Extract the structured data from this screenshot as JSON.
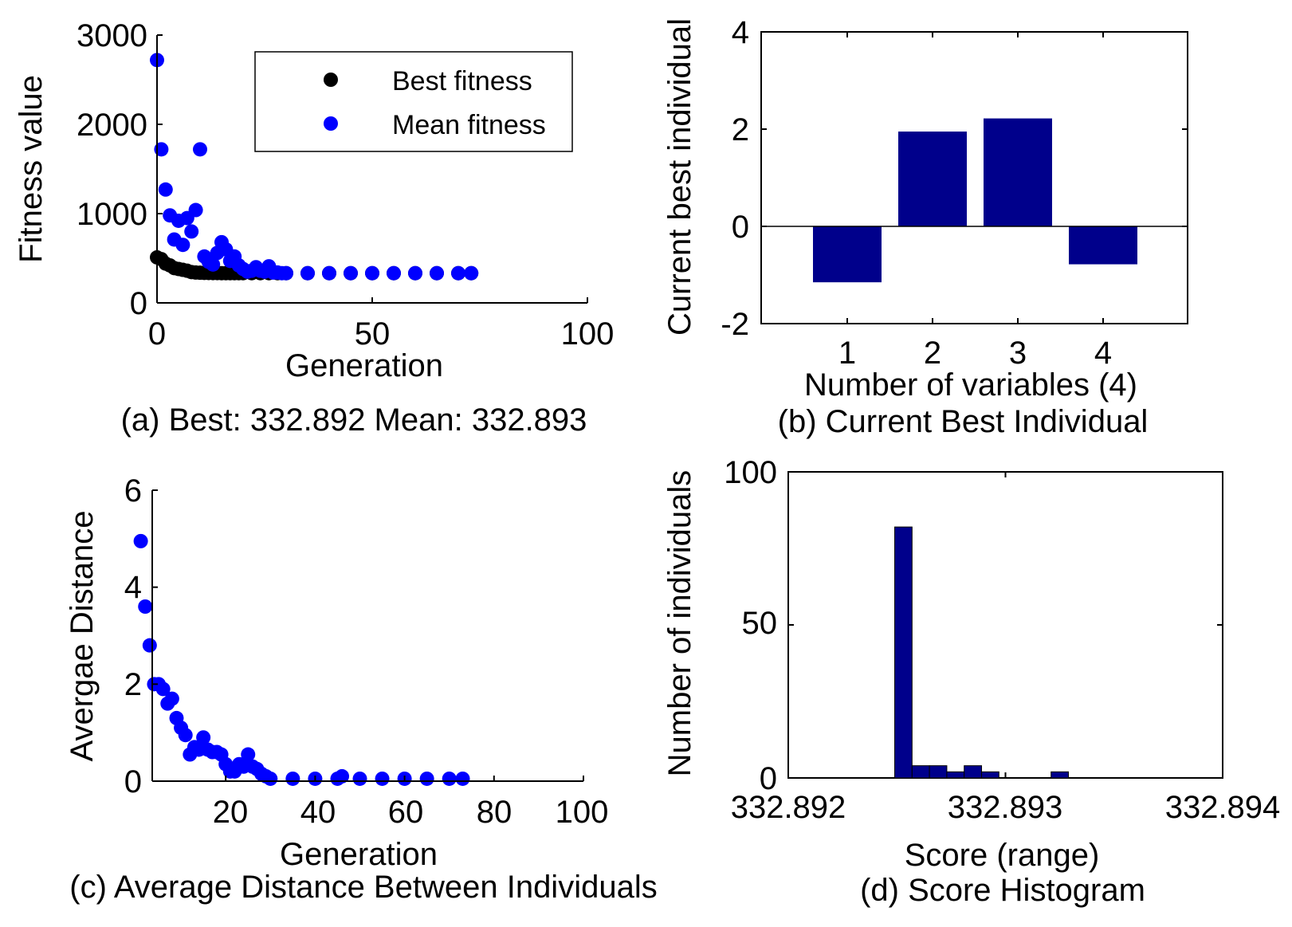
{
  "colors": {
    "best": "#000000",
    "mean": "#0000ff",
    "bar": "#00008b",
    "axis": "#000000"
  },
  "chart_data": [
    {
      "type": "scatter",
      "caption": "(a) Best: 332.892 Mean: 332.893",
      "xlabel": "Generation",
      "ylabel": "Fitness value",
      "xlim": [
        0,
        100
      ],
      "ylim": [
        0,
        3000
      ],
      "xticks": [
        "0",
        "50",
        "100"
      ],
      "yticks": [
        "0",
        "1000",
        "2000",
        "3000"
      ],
      "legend_position": "top-right",
      "series": [
        {
          "name": "Best fitness",
          "color": "#000000",
          "points": [
            [
              0,
              510
            ],
            [
              1,
              490
            ],
            [
              2,
              440
            ],
            [
              3,
              420
            ],
            [
              4,
              390
            ],
            [
              5,
              380
            ],
            [
              6,
              370
            ],
            [
              7,
              360
            ],
            [
              8,
              345
            ],
            [
              9,
              340
            ],
            [
              10,
              338
            ],
            [
              11,
              336
            ],
            [
              12,
              335
            ],
            [
              13,
              334
            ],
            [
              14,
              334
            ],
            [
              15,
              333
            ],
            [
              16,
              333
            ],
            [
              17,
              333
            ],
            [
              18,
              333
            ],
            [
              19,
              333
            ],
            [
              20,
              333
            ],
            [
              22,
              333
            ],
            [
              24,
              333
            ],
            [
              26,
              333
            ],
            [
              28,
              333
            ],
            [
              30,
              333
            ],
            [
              35,
              333
            ],
            [
              40,
              333
            ],
            [
              45,
              333
            ],
            [
              50,
              333
            ],
            [
              55,
              333
            ],
            [
              60,
              333
            ],
            [
              65,
              333
            ],
            [
              70,
              333
            ],
            [
              73,
              333
            ]
          ]
        },
        {
          "name": "Mean fitness",
          "color": "#0000ff",
          "points": [
            [
              0,
              2720
            ],
            [
              1,
              1720
            ],
            [
              2,
              1270
            ],
            [
              3,
              980
            ],
            [
              4,
              710
            ],
            [
              5,
              920
            ],
            [
              6,
              650
            ],
            [
              7,
              950
            ],
            [
              8,
              800
            ],
            [
              9,
              1040
            ],
            [
              10,
              1720
            ],
            [
              11,
              520
            ],
            [
              12,
              460
            ],
            [
              13,
              430
            ],
            [
              14,
              560
            ],
            [
              15,
              680
            ],
            [
              16,
              600
            ],
            [
              17,
              470
            ],
            [
              18,
              520
            ],
            [
              19,
              420
            ],
            [
              20,
              380
            ],
            [
              21,
              350
            ],
            [
              22,
              360
            ],
            [
              23,
              400
            ],
            [
              24,
              360
            ],
            [
              25,
              350
            ],
            [
              26,
              410
            ],
            [
              27,
              340
            ],
            [
              28,
              340
            ],
            [
              29,
              333
            ],
            [
              30,
              333
            ],
            [
              35,
              333
            ],
            [
              40,
              333
            ],
            [
              45,
              333
            ],
            [
              50,
              333
            ],
            [
              55,
              333
            ],
            [
              60,
              333
            ],
            [
              65,
              333
            ],
            [
              70,
              333
            ],
            [
              73,
              333
            ]
          ]
        }
      ]
    },
    {
      "type": "bar",
      "caption": "(b) Current Best Individual",
      "xlabel": "Number of variables (4)",
      "ylabel": "Current best individual",
      "categories": [
        "1",
        "2",
        "3",
        "4"
      ],
      "values": [
        -1.15,
        1.95,
        2.22,
        -0.78
      ],
      "ylim": [
        -2,
        4
      ],
      "yticks": [
        "-2",
        "0",
        "2",
        "4"
      ]
    },
    {
      "type": "scatter",
      "caption": "(c) Average Distance Between Individuals",
      "xlabel": "Generation",
      "ylabel": "Avergae Distance",
      "xlim": [
        0,
        100
      ],
      "ylim": [
        0,
        6
      ],
      "xticks": [
        "20",
        "40",
        "60",
        "80",
        "100"
      ],
      "yticks": [
        "0",
        "2",
        "4",
        "6"
      ],
      "series": [
        {
          "color": "#0000ff",
          "points": [
            [
              1,
              4.95
            ],
            [
              2,
              3.6
            ],
            [
              3,
              2.8
            ],
            [
              4,
              2.0
            ],
            [
              5,
              2.0
            ],
            [
              6,
              1.9
            ],
            [
              7,
              1.6
            ],
            [
              8,
              1.7
            ],
            [
              9,
              1.3
            ],
            [
              10,
              1.1
            ],
            [
              11,
              0.95
            ],
            [
              12,
              0.55
            ],
            [
              13,
              0.7
            ],
            [
              14,
              0.65
            ],
            [
              15,
              0.9
            ],
            [
              16,
              0.65
            ],
            [
              17,
              0.6
            ],
            [
              18,
              0.6
            ],
            [
              19,
              0.55
            ],
            [
              20,
              0.35
            ],
            [
              21,
              0.2
            ],
            [
              22,
              0.2
            ],
            [
              23,
              0.35
            ],
            [
              24,
              0.3
            ],
            [
              25,
              0.55
            ],
            [
              26,
              0.3
            ],
            [
              27,
              0.25
            ],
            [
              28,
              0.15
            ],
            [
              29,
              0.1
            ],
            [
              30,
              0.05
            ],
            [
              35,
              0.05
            ],
            [
              40,
              0.05
            ],
            [
              45,
              0.05
            ],
            [
              46,
              0.1
            ],
            [
              50,
              0.05
            ],
            [
              55,
              0.05
            ],
            [
              60,
              0.05
            ],
            [
              65,
              0.05
            ],
            [
              70,
              0.05
            ],
            [
              73,
              0.05
            ]
          ]
        }
      ]
    },
    {
      "type": "bar",
      "caption": "(d) Score Histogram",
      "xlabel": "Score (range)",
      "ylabel": "Number of individuals",
      "xlim": [
        332.892,
        332.894
      ],
      "ylim": [
        0,
        100
      ],
      "xticks": [
        "332.892",
        "332.893",
        "332.894"
      ],
      "yticks": [
        "0",
        "50",
        "100"
      ],
      "bins": [
        {
          "x0": 332.89249,
          "x1": 332.89257,
          "count": 82
        },
        {
          "x0": 332.89257,
          "x1": 332.89265,
          "count": 4
        },
        {
          "x0": 332.89265,
          "x1": 332.89273,
          "count": 4
        },
        {
          "x0": 332.89273,
          "x1": 332.89281,
          "count": 2
        },
        {
          "x0": 332.89281,
          "x1": 332.89289,
          "count": 4
        },
        {
          "x0": 332.89289,
          "x1": 332.89297,
          "count": 2
        },
        {
          "x0": 332.89321,
          "x1": 332.89329,
          "count": 2
        }
      ]
    }
  ]
}
